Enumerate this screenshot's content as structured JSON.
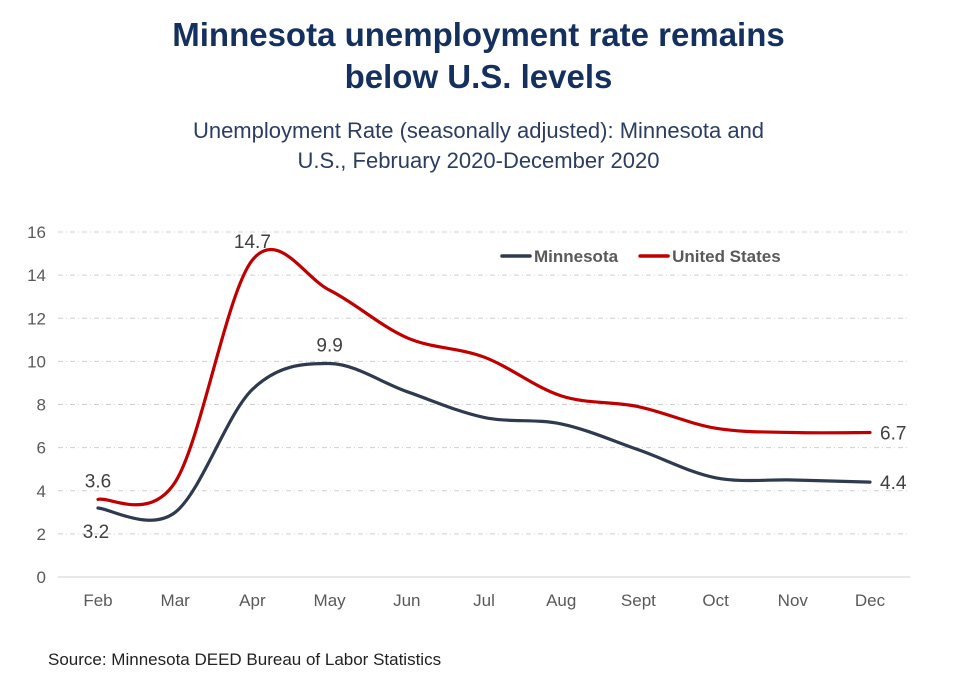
{
  "chart_data": {
    "type": "line",
    "title": "Minnesota unemployment rate remains below U.S. levels",
    "title_lines": [
      "Minnesota unemployment rate remains",
      "below U.S. levels"
    ],
    "subtitle": "Unemployment Rate (seasonally adjusted): Minnesota and U.S., February 2020-December 2020",
    "subtitle_lines": [
      "Unemployment Rate (seasonally adjusted): Minnesota and",
      "U.S., February 2020-December 2020"
    ],
    "xlabel": "",
    "ylabel": "",
    "categories": [
      "Feb",
      "Mar",
      "Apr",
      "May",
      "Jun",
      "Jul",
      "Aug",
      "Sept",
      "Oct",
      "Nov",
      "Dec"
    ],
    "ylim": [
      0,
      16
    ],
    "yticks": [
      0,
      2,
      4,
      6,
      8,
      10,
      12,
      14,
      16
    ],
    "grid": true,
    "legend_position": "top-right",
    "series": [
      {
        "name": "Minnesota",
        "color": "#2e3a4f",
        "values": [
          3.2,
          3.0,
          8.7,
          9.9,
          8.6,
          7.4,
          7.1,
          5.9,
          4.6,
          4.5,
          4.4
        ],
        "data_labels": [
          {
            "index": 0,
            "text": "3.2",
            "position": "below"
          },
          {
            "index": 3,
            "text": "9.9",
            "position": "above"
          },
          {
            "index": 10,
            "text": "4.4",
            "position": "right"
          }
        ]
      },
      {
        "name": "United States",
        "color": "#c00000",
        "values": [
          3.6,
          4.4,
          14.7,
          13.3,
          11.1,
          10.2,
          8.4,
          7.9,
          6.9,
          6.7,
          6.7
        ],
        "data_labels": [
          {
            "index": 0,
            "text": "3.6",
            "position": "above"
          },
          {
            "index": 2,
            "text": "14.7",
            "position": "above"
          },
          {
            "index": 10,
            "text": "6.7",
            "position": "right"
          }
        ]
      }
    ],
    "source": "Source: Minnesota DEED Bureau of Labor Statistics"
  }
}
